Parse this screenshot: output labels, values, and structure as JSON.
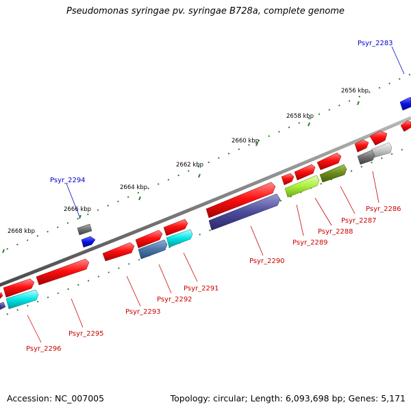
{
  "map": {
    "title": "Pseudomonas syringae pv. syringae B728a, complete genome",
    "accession_text": "Accession: NC_007005",
    "summary_text": "Topology: circular; Length: 6,093,698 bp; Genes: 5,171"
  },
  "ticks": [
    "2656 kbp",
    "2658 kbp",
    "2660 kbp",
    "2662 kbp",
    "2664 kbp",
    "2666 kbp",
    "2668 kbp"
  ],
  "genes": [
    "Psyr_2283",
    "Psyr_2294",
    "Psyr_2286",
    "Psyr_2287",
    "Psyr_2288",
    "Psyr_2289",
    "Psyr_2290",
    "Psyr_2291",
    "Psyr_2292",
    "Psyr_2293",
    "Psyr_2295",
    "Psyr_2296"
  ],
  "colors": {
    "backbone": "#7f7f7f",
    "cds_forward": "#ff0000",
    "highlight_label": "#0000cc",
    "gene_label": "#cc0000",
    "tick": "#2a7d2a",
    "cyan_feature": "#00e5e5",
    "slate_feature": "#4a6fa5",
    "purple_feature": "#4a4a9a",
    "lime_feature": "#aaf03c",
    "olive_feature": "#6a8a1a",
    "grey_feature": "#707070",
    "silver_feature": "#c8c8c8",
    "blue_feature": "#0a12e0"
  }
}
